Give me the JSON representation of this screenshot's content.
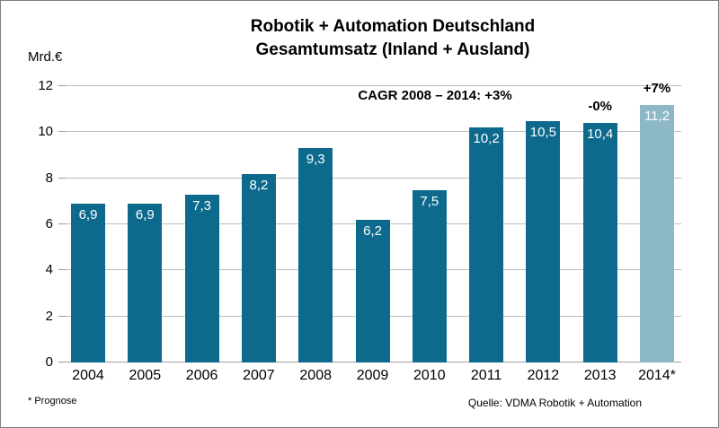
{
  "header": {
    "title_line1": "Robotik + Automation Deutschland",
    "title_line2": "Gesamtumsatz (Inland + Ausland)"
  },
  "chart_data": {
    "type": "bar",
    "title": "Robotik + Automation Deutschland Gesamtumsatz (Inland + Ausland)",
    "ylabel": "Mrd.€",
    "xlabel": "",
    "ylim": [
      0,
      12
    ],
    "yticks": [
      0,
      2,
      4,
      6,
      8,
      10,
      12
    ],
    "grid": true,
    "legend": "none",
    "categories": [
      "2004",
      "2005",
      "2006",
      "2007",
      "2008",
      "2009",
      "2010",
      "2011",
      "2012",
      "2013",
      "2014*"
    ],
    "values": [
      6.9,
      6.9,
      7.3,
      8.2,
      9.3,
      6.2,
      7.5,
      10.2,
      10.5,
      10.4,
      11.2
    ],
    "value_labels": [
      "6,9",
      "6,9",
      "7,3",
      "8,2",
      "9,3",
      "6,2",
      "7,5",
      "10,2",
      "10,5",
      "10,4",
      "11,2"
    ],
    "forecast_index": 10,
    "colors": {
      "bar": "#0d6a8c",
      "forecast_bar": "#8db8c8",
      "value_label": "#ffffff",
      "gridline": "#bdbdbd"
    },
    "annotations": {
      "cagr": "CAGR 2008 – 2014: +3%",
      "bar_notes": [
        {
          "category": "2013",
          "text": "-0%"
        },
        {
          "category": "2014*",
          "text": "+7%"
        }
      ]
    }
  },
  "footer": {
    "note": "* Prognose",
    "source": "Quelle: VDMA Robotik + Automation"
  }
}
